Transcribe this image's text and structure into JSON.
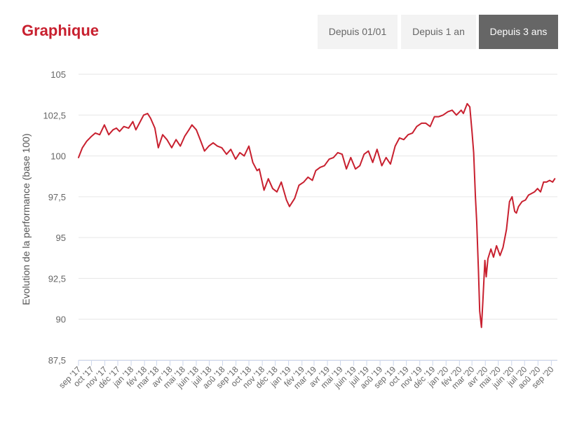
{
  "header": {
    "title": "Graphique"
  },
  "tabs": [
    {
      "label": "Depuis 01/01",
      "active": false
    },
    {
      "label": "Depuis 1 an",
      "active": false
    },
    {
      "label": "Depuis 3 ans",
      "active": true
    }
  ],
  "colors": {
    "accent": "#c8202f",
    "active_tab": "#666666",
    "tab_bg": "#f3f3f3"
  },
  "chart_data": {
    "type": "line",
    "title": "",
    "xlabel": "",
    "ylabel": "Evolution de la performance (base 100)",
    "ylim": [
      87.5,
      105
    ],
    "yticks": [
      "105",
      "102,5",
      "100",
      "97,5",
      "95",
      "92,5",
      "90",
      "87,5"
    ],
    "ytick_values": [
      105,
      102.5,
      100,
      97.5,
      95,
      92.5,
      90,
      87.5
    ],
    "xlim": [
      "2017-09-01",
      "2020-09-15"
    ],
    "grid": true,
    "xtick_labels": [
      "sep '17",
      "oct '17",
      "nov '17",
      "déc '17",
      "jan '18",
      "fév '18",
      "mar '18",
      "avr '18",
      "mai '18",
      "juin '18",
      "juil '18",
      "aoû '18",
      "sep '18",
      "oct '18",
      "nov '18",
      "déc '18",
      "jan '19",
      "fév '19",
      "mar '19",
      "avr '19",
      "mai '19",
      "juin '19",
      "juil '19",
      "aoû '19",
      "sep '19",
      "oct '19",
      "nov '19",
      "déc '19",
      "jan '20",
      "fév '20",
      "mar '20",
      "avr '20",
      "mai '20",
      "juin '20",
      "juil '20",
      "aoû '20",
      "sep '20"
    ],
    "xtick_dates": [
      "2017-09-01",
      "2017-10-01",
      "2017-11-01",
      "2017-12-01",
      "2018-01-01",
      "2018-02-01",
      "2018-03-01",
      "2018-04-01",
      "2018-05-01",
      "2018-06-01",
      "2018-07-01",
      "2018-08-01",
      "2018-09-01",
      "2018-10-01",
      "2018-11-01",
      "2018-12-01",
      "2019-01-01",
      "2019-02-01",
      "2019-03-01",
      "2019-04-01",
      "2019-05-01",
      "2019-06-01",
      "2019-07-01",
      "2019-08-01",
      "2019-09-01",
      "2019-10-01",
      "2019-11-01",
      "2019-12-01",
      "2020-01-01",
      "2020-02-01",
      "2020-03-01",
      "2020-04-01",
      "2020-05-01",
      "2020-06-01",
      "2020-07-01",
      "2020-08-01",
      "2020-09-01"
    ],
    "series": [
      {
        "color": "#c8202f",
        "x": [
          "2017-09-01",
          "2017-09-10",
          "2017-09-20",
          "2017-10-01",
          "2017-10-10",
          "2017-10-20",
          "2017-10-31",
          "2017-11-10",
          "2017-11-20",
          "2017-11-28",
          "2017-12-05",
          "2017-12-15",
          "2017-12-26",
          "2018-01-05",
          "2018-01-12",
          "2018-01-20",
          "2018-01-30",
          "2018-02-08",
          "2018-02-15",
          "2018-02-25",
          "2018-03-05",
          "2018-03-15",
          "2018-03-25",
          "2018-04-05",
          "2018-04-15",
          "2018-04-25",
          "2018-05-05",
          "2018-05-15",
          "2018-05-22",
          "2018-06-01",
          "2018-06-10",
          "2018-06-20",
          "2018-06-30",
          "2018-07-10",
          "2018-07-20",
          "2018-07-30",
          "2018-08-10",
          "2018-08-20",
          "2018-08-31",
          "2018-09-10",
          "2018-09-20",
          "2018-10-01",
          "2018-10-10",
          "2018-10-20",
          "2018-10-25",
          "2018-11-05",
          "2018-11-15",
          "2018-11-25",
          "2018-12-05",
          "2018-12-15",
          "2018-12-27",
          "2019-01-03",
          "2019-01-15",
          "2019-01-25",
          "2019-02-05",
          "2019-02-15",
          "2019-02-25",
          "2019-03-05",
          "2019-03-15",
          "2019-03-25",
          "2019-04-05",
          "2019-04-15",
          "2019-04-25",
          "2019-05-05",
          "2019-05-15",
          "2019-05-25",
          "2019-06-05",
          "2019-06-15",
          "2019-06-25",
          "2019-07-05",
          "2019-07-15",
          "2019-07-25",
          "2019-08-05",
          "2019-08-15",
          "2019-08-25",
          "2019-09-05",
          "2019-09-15",
          "2019-09-25",
          "2019-10-05",
          "2019-10-15",
          "2019-10-25",
          "2019-11-05",
          "2019-11-15",
          "2019-11-25",
          "2019-12-05",
          "2019-12-15",
          "2019-12-25",
          "2020-01-05",
          "2020-01-15",
          "2020-01-25",
          "2020-02-05",
          "2020-02-10",
          "2020-02-19",
          "2020-02-25",
          "2020-03-01",
          "2020-03-05",
          "2020-03-09",
          "2020-03-12",
          "2020-03-16",
          "2020-03-19",
          "2020-03-23",
          "2020-03-26",
          "2020-03-31",
          "2020-04-03",
          "2020-04-07",
          "2020-04-14",
          "2020-04-20",
          "2020-04-27",
          "2020-05-05",
          "2020-05-12",
          "2020-05-20",
          "2020-05-27",
          "2020-06-02",
          "2020-06-08",
          "2020-06-12",
          "2020-06-17",
          "2020-06-25",
          "2020-07-03",
          "2020-07-10",
          "2020-07-17",
          "2020-07-24",
          "2020-07-31",
          "2020-08-07",
          "2020-08-14",
          "2020-08-21",
          "2020-08-28",
          "2020-09-04",
          "2020-09-09"
        ],
        "y": [
          99.9,
          100.5,
          100.9,
          101.2,
          101.4,
          101.3,
          101.9,
          101.3,
          101.6,
          101.7,
          101.5,
          101.8,
          101.7,
          102.1,
          101.6,
          102.0,
          102.5,
          102.6,
          102.3,
          101.7,
          100.5,
          101.3,
          101.0,
          100.5,
          101.0,
          100.6,
          101.2,
          101.6,
          101.9,
          101.6,
          101.0,
          100.3,
          100.6,
          100.8,
          100.6,
          100.5,
          100.1,
          100.4,
          99.8,
          100.2,
          100.0,
          100.6,
          99.6,
          99.1,
          99.2,
          97.9,
          98.6,
          98.0,
          97.8,
          98.4,
          97.3,
          96.9,
          97.4,
          98.2,
          98.4,
          98.7,
          98.5,
          99.1,
          99.3,
          99.4,
          99.8,
          99.9,
          100.2,
          100.1,
          99.2,
          99.9,
          99.2,
          99.4,
          100.1,
          100.3,
          99.6,
          100.4,
          99.4,
          99.9,
          99.5,
          100.6,
          101.1,
          101.0,
          101.3,
          101.4,
          101.8,
          102.0,
          102.0,
          101.8,
          102.4,
          102.4,
          102.5,
          102.7,
          102.8,
          102.5,
          102.8,
          102.6,
          103.2,
          103.0,
          101.5,
          100.2,
          97.5,
          96.0,
          93.0,
          90.5,
          89.5,
          91.0,
          93.6,
          92.6,
          93.7,
          94.3,
          93.8,
          94.5,
          93.9,
          94.4,
          95.5,
          97.2,
          97.5,
          96.6,
          96.5,
          96.9,
          97.2,
          97.3,
          97.6,
          97.7,
          97.8,
          98.0,
          97.8,
          98.4,
          98.4,
          98.5,
          98.4,
          98.6
        ]
      }
    ]
  }
}
